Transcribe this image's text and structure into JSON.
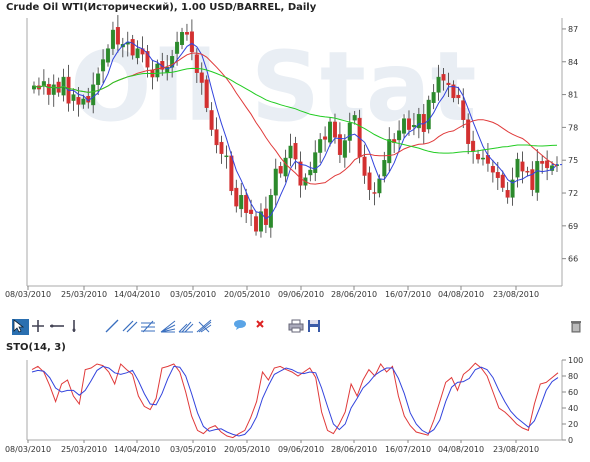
{
  "header": {
    "title": "Crude Oil WTI(Исторический), 1.00 USD/BARREL, Daily"
  },
  "indicator": {
    "title": "STO(14, 3)"
  },
  "watermark": {
    "text": "Oil Stat"
  },
  "toolbar": {
    "icons": [
      "cursor-icon",
      "crosshair-icon",
      "horizontal-line-icon",
      "vertical-line-icon",
      "trend-line-icon",
      "channel-icon",
      "fibonacci-fan-icon",
      "gann-fan-icon",
      "andrews-pitchfork-icon",
      "comment-icon",
      "delete-icon",
      "print-icon",
      "save-icon",
      "trash-icon"
    ]
  },
  "colors": {
    "up": "#2c8a2c",
    "down": "#d33030",
    "ma_fast": "#3344dd",
    "ma_mid": "#e03a3a",
    "ma_slow": "#22cc22",
    "sto_k": "#e03a3a",
    "sto_d": "#3344dd"
  },
  "chart_data": [
    {
      "type": "candlestick",
      "title": "Crude Oil WTI(Исторический), 1.00 USD/BARREL, Daily",
      "x_tick_labels": [
        "08/03/2010",
        "25/03/2010",
        "14/04/2010",
        "03/05/2010",
        "20/05/2010",
        "09/06/2010",
        "28/06/2010",
        "16/07/2010",
        "04/08/2010",
        "23/08/2010"
      ],
      "y_tick_labels": [
        "66",
        "69",
        "72",
        "75",
        "78",
        "81",
        "84",
        "87"
      ],
      "ylim": [
        63.5,
        88
      ],
      "grid": false,
      "closes": [
        81.8,
        81.5,
        82.2,
        81.0,
        81.9,
        81.2,
        82.6,
        80.2,
        81.0,
        80.1,
        80.6,
        80.3,
        81.9,
        82.9,
        84.2,
        85.2,
        86.9,
        85.6,
        85.6,
        85.8,
        84.6,
        85.2,
        84.7,
        83.5,
        82.6,
        83.8,
        83.3,
        83.5,
        84.5,
        85.8,
        86.7,
        86.5,
        84.9,
        83.0,
        82.1,
        79.8,
        77.8,
        76.4,
        75.6,
        75.4,
        72.2,
        70.8,
        71.8,
        70.2,
        70.1,
        68.5,
        70.3,
        69.1,
        71.8,
        74.2,
        73.8,
        75.2,
        76.3,
        75.1,
        72.7,
        73.4,
        74.1,
        75.7,
        76.9,
        76.9,
        78.5,
        77.1,
        75.5,
        76.8,
        78.4,
        79.1,
        75.3,
        73.6,
        72.3,
        72.0,
        73.3,
        75.0,
        76.9,
        76.6,
        77.7,
        78.8,
        77.8,
        78.2,
        79.2,
        77.6,
        80.5,
        81.2,
        82.6,
        82.3,
        81.9,
        80.7,
        80.7,
        78.7,
        76.5,
        75.8,
        75.1,
        75.2,
        74.7,
        73.9,
        73.4,
        72.5,
        71.6,
        73.2,
        75.1,
        74.0,
        73.9,
        72.3,
        74.9,
        74.7,
        74.3,
        74.5,
        74.6
      ],
      "moving_averages": [
        {
          "name": "",
          "color": "#3344dd",
          "period": 5
        },
        {
          "name": "",
          "color": "#e03a3a",
          "period": 20
        },
        {
          "name": "",
          "color": "#22cc22",
          "period": 50
        }
      ]
    },
    {
      "type": "line",
      "title": "STO(14, 3)",
      "x_tick_labels": [
        "08/03/2010",
        "25/03/2010",
        "14/04/2010",
        "03/05/2010",
        "20/05/2010",
        "09/06/2010",
        "28/06/2010",
        "16/07/2010",
        "04/08/2010",
        "23/08/2010"
      ],
      "y_tick_labels": [
        "0",
        "20",
        "40",
        "60",
        "80",
        "100"
      ],
      "ylim": [
        0,
        100
      ],
      "series": [
        {
          "name": "",
          "color": "#e03a3a",
          "values": [
            88,
            92,
            85,
            68,
            48,
            70,
            75,
            55,
            45,
            88,
            90,
            95,
            93,
            85,
            70,
            95,
            88,
            82,
            55,
            42,
            38,
            52,
            90,
            92,
            95,
            85,
            60,
            30,
            12,
            8,
            15,
            18,
            10,
            5,
            3,
            8,
            12,
            28,
            48,
            85,
            75,
            90,
            92,
            88,
            85,
            80,
            85,
            90,
            78,
            35,
            12,
            8,
            20,
            35,
            70,
            55,
            75,
            88,
            80,
            95,
            85,
            92,
            55,
            30,
            18,
            10,
            8,
            6,
            25,
            48,
            72,
            78,
            62,
            82,
            88,
            96,
            90,
            80,
            60,
            40,
            35,
            28,
            20,
            15,
            12,
            45,
            70,
            72,
            78,
            84
          ]
        },
        {
          "name": "",
          "color": "#3344dd",
          "values": [
            85,
            87,
            86,
            78,
            65,
            60,
            62,
            62,
            56,
            62,
            74,
            87,
            92,
            90,
            84,
            82,
            84,
            87,
            74,
            58,
            45,
            44,
            58,
            77,
            92,
            91,
            80,
            58,
            34,
            17,
            11,
            13,
            14,
            10,
            7,
            5,
            7,
            15,
            29,
            52,
            68,
            82,
            86,
            90,
            88,
            84,
            83,
            85,
            84,
            65,
            42,
            20,
            13,
            20,
            40,
            52,
            65,
            72,
            81,
            86,
            90,
            90,
            77,
            58,
            34,
            20,
            12,
            8,
            13,
            25,
            48,
            66,
            72,
            73,
            77,
            88,
            91,
            88,
            78,
            62,
            48,
            36,
            28,
            22,
            16,
            24,
            42,
            62,
            73,
            78
          ]
        }
      ]
    }
  ]
}
